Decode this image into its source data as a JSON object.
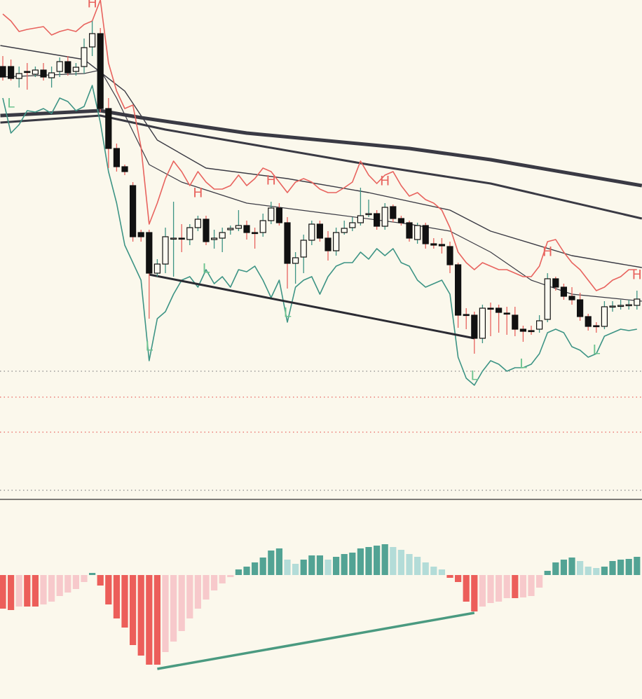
{
  "chart_data": [
    {
      "type": "candlestick",
      "xlim": [
        -0.345,
        78.62
      ],
      "ylim": [
        -13,
        700
      ],
      "x": [
        0,
        1,
        2,
        3,
        4,
        5,
        6,
        7,
        8,
        9,
        10,
        11,
        12,
        13,
        14,
        15,
        16,
        17,
        18,
        19,
        20,
        21,
        22,
        23,
        24,
        25,
        26,
        27,
        28,
        29,
        30,
        31,
        32,
        33,
        34,
        35,
        36,
        37,
        38,
        39,
        40,
        41,
        42,
        43,
        44,
        45,
        46,
        47,
        48,
        49,
        50,
        51,
        52,
        53,
        54,
        55,
        56,
        57,
        58,
        59,
        60,
        61,
        62,
        63,
        64,
        65,
        66,
        67,
        68,
        69,
        70,
        71,
        72,
        73,
        74,
        75,
        76,
        77,
        78
      ],
      "open": [
        605,
        605,
        588,
        598,
        594,
        600,
        589,
        598,
        612,
        598,
        605,
        633,
        652,
        545,
        488,
        462,
        435,
        368,
        368,
        310,
        323,
        360,
        360,
        358,
        375,
        387,
        358,
        360,
        372,
        374,
        378,
        368,
        368,
        385,
        403,
        382,
        324,
        333,
        357,
        380,
        360,
        342,
        368,
        375,
        382,
        394,
        395,
        377,
        405,
        388,
        382,
        358,
        378,
        352,
        351,
        348,
        322,
        251,
        250,
        217,
        260,
        260,
        253,
        250,
        230,
        228,
        230,
        244,
        302,
        290,
        277,
        272,
        248,
        235,
        234,
        263,
        264,
        264,
        264
      ],
      "high": [
        620,
        615,
        605,
        610,
        605,
        610,
        605,
        618,
        620,
        610,
        645,
        670,
        660,
        560,
        495,
        465,
        440,
        372,
        372,
        330,
        375,
        412,
        380,
        380,
        392,
        392,
        372,
        375,
        378,
        400,
        385,
        375,
        395,
        412,
        410,
        390,
        340,
        365,
        385,
        385,
        370,
        375,
        385,
        390,
        432,
        415,
        400,
        410,
        408,
        392,
        385,
        382,
        382,
        360,
        360,
        355,
        325,
        260,
        255,
        265,
        268,
        265,
        262,
        262,
        235,
        235,
        250,
        310,
        305,
        295,
        290,
        282,
        252,
        240,
        270,
        270,
        272,
        272,
        285
      ],
      "low": [
        585,
        585,
        575,
        572,
        590,
        585,
        575,
        590,
        592,
        592,
        595,
        620,
        540,
        460,
        455,
        450,
        355,
        355,
        245,
        305,
        310,
        305,
        340,
        350,
        370,
        350,
        345,
        340,
        365,
        370,
        358,
        345,
        362,
        380,
        378,
        288,
        295,
        310,
        350,
        355,
        328,
        335,
        365,
        370,
        378,
        390,
        372,
        372,
        383,
        378,
        355,
        352,
        345,
        345,
        338,
        310,
        232,
        230,
        195,
        210,
        220,
        225,
        222,
        220,
        212,
        222,
        225,
        240,
        285,
        272,
        265,
        242,
        228,
        225,
        230,
        255,
        258,
        258,
        258
      ],
      "close": [
        590,
        588,
        595,
        597,
        600,
        590,
        596,
        612,
        596,
        604,
        632,
        652,
        545,
        488,
        462,
        455,
        362,
        362,
        310,
        323,
        362,
        360,
        359,
        375,
        387,
        355,
        360,
        368,
        374,
        378,
        368,
        367,
        385,
        403,
        382,
        324,
        332,
        357,
        380,
        360,
        342,
        368,
        374,
        382,
        392,
        395,
        377,
        404,
        388,
        382,
        360,
        378,
        352,
        350,
        349,
        322,
        250,
        250,
        217,
        260,
        259,
        254,
        252,
        230,
        227,
        227,
        242,
        302,
        290,
        277,
        272,
        248,
        234,
        234,
        262,
        263,
        264,
        265,
        273
      ],
      "up_color": "#fdfbf2",
      "down_color": "#111111",
      "up_wick": "#3d9485",
      "down_wick": "#e8635e",
      "bands": [
        {
          "color": "#e8635e",
          "values": [
            680,
            670,
            655,
            658,
            660,
            662,
            650,
            655,
            658,
            655,
            665,
            670,
            700,
            610,
            570,
            545,
            550,
            490,
            380,
            410,
            445,
            470,
            455,
            435,
            455,
            440,
            430,
            430,
            435,
            450,
            435,
            445,
            460,
            455,
            440,
            425,
            440,
            445,
            440,
            430,
            425,
            425,
            432,
            440,
            470,
            450,
            438,
            450,
            455,
            435,
            420,
            425,
            415,
            410,
            400,
            375,
            340,
            325,
            315,
            325,
            320,
            315,
            315,
            310,
            305,
            305,
            320,
            355,
            358,
            340,
            325,
            315,
            300,
            285,
            290,
            300,
            305,
            315,
            315
          ]
        },
        {
          "color": "#3d9485",
          "values": [
            560,
            510,
            522,
            542,
            540,
            545,
            538,
            560,
            555,
            542,
            548,
            578,
            525,
            455,
            410,
            350,
            325,
            300,
            185,
            245,
            255,
            280,
            300,
            305,
            290,
            315,
            295,
            305,
            290,
            315,
            312,
            320,
            300,
            275,
            300,
            240,
            290,
            300,
            305,
            280,
            305,
            320,
            325,
            325,
            340,
            330,
            345,
            335,
            345,
            325,
            320,
            300,
            290,
            295,
            300,
            280,
            190,
            160,
            150,
            170,
            185,
            180,
            170,
            175,
            175,
            180,
            195,
            225,
            230,
            225,
            205,
            200,
            190,
            195,
            220,
            225,
            230,
            228,
            230
          ]
        }
      ],
      "lines": [
        {
          "color": "#3a3a44",
          "width": 5,
          "x": [
            -0.3,
            12,
            17,
            30,
            50,
            60,
            78.6
          ],
          "values": [
            535,
            542,
            532,
            510,
            488,
            472,
            435
          ]
        },
        {
          "color": "#3a3a44",
          "width": 3,
          "x": [
            -0.3,
            12,
            20,
            30,
            45,
            60,
            78.6
          ],
          "values": [
            525,
            535,
            515,
            495,
            465,
            438,
            388
          ]
        },
        {
          "color": "#3a3a44",
          "width": 1.4,
          "x": [
            -0.3,
            10,
            15,
            19,
            25,
            35,
            45,
            55,
            60,
            70,
            78.6
          ],
          "values": [
            635,
            615,
            570,
            500,
            460,
            445,
            425,
            400,
            370,
            335,
            318
          ]
        },
        {
          "color": "#3a3a44",
          "width": 1.2,
          "x": [
            -0.3,
            10,
            12,
            14,
            18,
            22,
            30,
            40,
            50,
            55,
            60,
            65,
            70,
            78.6
          ],
          "values": [
            590,
            595,
            600,
            560,
            465,
            440,
            410,
            395,
            380,
            370,
            340,
            300,
            280,
            270
          ]
        }
      ],
      "trendlines": [
        {
          "color": "#2b2b33",
          "x": [
            18,
            58
          ],
          "values": [
            308,
            217
          ]
        }
      ],
      "levels": [
        {
          "value": 170,
          "color": "#888888"
        },
        {
          "value": 133,
          "color": "#e8635e"
        },
        {
          "value": 83,
          "color": "#e8635e"
        },
        {
          "value": 0,
          "color": "#888888"
        }
      ],
      "annotations": [
        {
          "text": "H",
          "x": 11,
          "y": 695,
          "color": "#e8635e"
        },
        {
          "text": "H",
          "x": 24,
          "y": 424,
          "color": "#e8635e"
        },
        {
          "text": "H",
          "x": 33,
          "y": 442,
          "color": "#e8635e"
        },
        {
          "text": "H",
          "x": 47,
          "y": 441,
          "color": "#e8635e"
        },
        {
          "text": "H",
          "x": 67,
          "y": 340,
          "color": "#e8635e"
        },
        {
          "text": "H",
          "x": 78,
          "y": 307,
          "color": "#e8635e"
        },
        {
          "text": "L",
          "x": 1,
          "y": 552,
          "color": "#6cc38f"
        },
        {
          "text": "L",
          "x": 25,
          "y": 316,
          "color": "#6cc38f"
        },
        {
          "text": "L",
          "x": 35,
          "y": 253,
          "color": "#6cc38f"
        },
        {
          "text": "L",
          "x": 18,
          "y": 205,
          "color": "#6cc38f"
        },
        {
          "text": "L",
          "x": 58,
          "y": 163,
          "color": "#6cc38f"
        },
        {
          "text": "L",
          "x": 64,
          "y": 180,
          "color": "#6cc38f"
        },
        {
          "text": "L",
          "x": 73,
          "y": 200,
          "color": "#6cc38f"
        }
      ]
    },
    {
      "type": "histogram-bar",
      "xlim": [
        -0.345,
        78.62
      ],
      "ylim": [
        -177,
        107
      ],
      "x": [
        0,
        1,
        2,
        3,
        4,
        5,
        6,
        7,
        8,
        9,
        10,
        11,
        12,
        13,
        14,
        15,
        16,
        17,
        18,
        19,
        20,
        21,
        22,
        23,
        24,
        25,
        26,
        27,
        28,
        29,
        30,
        31,
        32,
        33,
        34,
        35,
        36,
        37,
        38,
        39,
        40,
        41,
        42,
        43,
        44,
        45,
        46,
        47,
        48,
        49,
        50,
        51,
        52,
        53,
        54,
        55,
        56,
        57,
        58,
        59,
        60,
        61,
        62,
        63,
        64,
        65,
        66,
        67,
        68,
        69,
        70,
        71,
        72,
        73,
        74,
        75,
        76,
        77,
        78
      ],
      "values": [
        -48,
        -50,
        -45,
        -45,
        -45,
        -42,
        -38,
        -30,
        -25,
        -20,
        -10,
        3,
        -15,
        -42,
        -62,
        -75,
        -100,
        -115,
        -128,
        -128,
        -110,
        -95,
        -80,
        -62,
        -48,
        -35,
        -22,
        -12,
        -3,
        8,
        12,
        18,
        25,
        35,
        38,
        22,
        16,
        22,
        28,
        28,
        22,
        26,
        30,
        32,
        38,
        40,
        42,
        44,
        40,
        36,
        30,
        26,
        18,
        12,
        8,
        -4,
        -10,
        -38,
        -52,
        -45,
        -40,
        -38,
        -33,
        -33,
        -32,
        -30,
        -18,
        6,
        18,
        22,
        25,
        20,
        12,
        10,
        12,
        20,
        22,
        23,
        26
      ],
      "colors": {
        "pos_rising": "#52a394",
        "pos_falling": "#b3dcd8",
        "neg_falling": "#ec5e5a",
        "neg_rising": "#f7c9cb"
      },
      "trendlines": [
        {
          "color": "#4a9a80",
          "x": [
            19,
            58
          ],
          "values": [
            -134,
            -54
          ]
        }
      ]
    }
  ]
}
